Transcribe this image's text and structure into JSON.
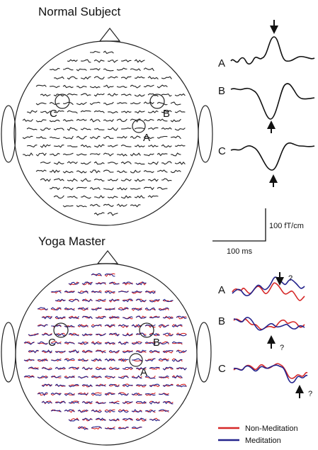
{
  "panels": [
    {
      "title": "Normal Subject",
      "sensor_labels": [
        "A",
        "B",
        "C"
      ],
      "trace_labels": [
        "A",
        "B",
        "C"
      ]
    },
    {
      "title": "Yoga Master",
      "sensor_labels": [
        "A",
        "B",
        "C"
      ],
      "trace_labels": [
        "A",
        "B",
        "C"
      ],
      "markers": [
        "?",
        "?",
        "?"
      ]
    }
  ],
  "scale_bar": {
    "amplitude": "100 fT/cm",
    "time": "100 ms"
  },
  "legend": [
    {
      "name": "Non-Meditation",
      "color": "#d62828"
    },
    {
      "name": "Meditation",
      "color": "#23238c"
    }
  ]
}
